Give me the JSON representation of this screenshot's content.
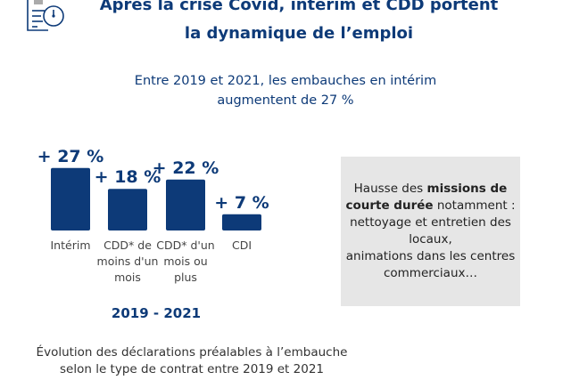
{
  "title": "Après la crise Covid, intérim et CDD portent la dynamique de l’emploi",
  "subtitle_line1": "Entre 2019 et 2021, les embauches en intérim",
  "subtitle_line2": "augmentent de 27 %",
  "icon": "document-clock-icon",
  "colors": {
    "bar": "#0d3a78",
    "text": "#0d3a78",
    "box": "#e6e6e6"
  },
  "chart_data": {
    "type": "bar",
    "categories": [
      "Intérim",
      "CDD* de moins d'un mois",
      "CDD* d'un mois ou plus",
      "CDI"
    ],
    "category_lines": [
      [
        "Intérim"
      ],
      [
        "CDD* de",
        "moins d'un",
        "mois"
      ],
      [
        "CDD* d'un",
        "mois ou",
        "plus"
      ],
      [
        "CDI"
      ]
    ],
    "values": [
      27,
      18,
      22,
      7
    ],
    "data_labels": [
      "+ 27 %",
      "+ 18 %",
      "+ 22 %",
      "+ 7 %"
    ],
    "unit": "%",
    "xlabel": "2019 - 2021",
    "grid": false
  },
  "box": {
    "pre": "Hausse des ",
    "bold": "missions de courte durée",
    "post": " notamment : nettoyage et entretien des locaux,",
    "line2": "animations dans les centres commerciaux…"
  },
  "caption_line1": "Évolution des déclarations préalables à l’embauche",
  "caption_line2": "selon le type de contrat entre 2019 et 2021"
}
